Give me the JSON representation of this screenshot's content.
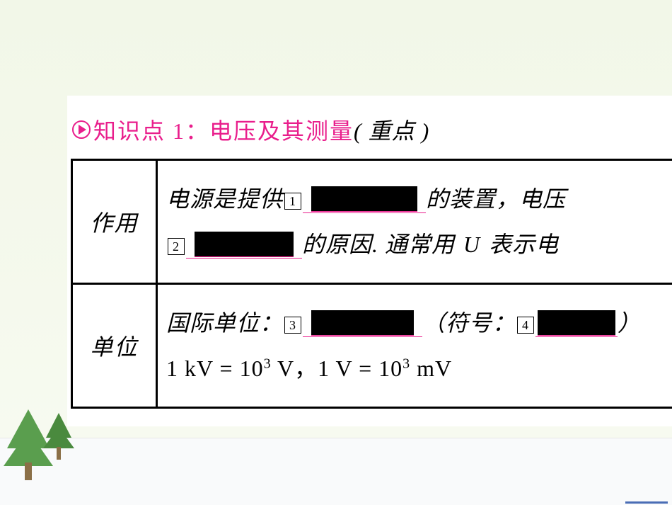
{
  "header": {
    "title_main": "知识点 1：电压及其测量",
    "title_suffix": "( 重点 )"
  },
  "table": {
    "rows": [
      {
        "label": "作用",
        "line1_prefix": "电源是提供",
        "num1": "1",
        "line1_mid": " 的装置，电压",
        "num2": "2",
        "line2_mid": " 的原因. 通常用 ",
        "var": "U",
        "line2_suffix": " 表示电"
      },
      {
        "label": "单位",
        "line1_prefix": "国际单位：",
        "num3": "3",
        "line1_mid": "（符号：",
        "num4": "4",
        "line1_suffix": "）",
        "formula": "1 kV = 10³ V，1 V = 10³ mV"
      }
    ]
  },
  "styling": {
    "accent_color": "#e91e8c",
    "background_gradient_top": "#f2f7e8",
    "background_gradient_bottom": "#f8fbf2",
    "panel_bg": "#ffffff",
    "text_color": "#000000",
    "border_color": "#000000",
    "tree_green_1": "#5a9e4e",
    "tree_green_2": "#4a8a3e",
    "trunk_color": "#8b6f47",
    "title_fontsize": 32,
    "body_fontsize": 32,
    "box_num_fontsize": 18,
    "table_border_width": 3
  }
}
